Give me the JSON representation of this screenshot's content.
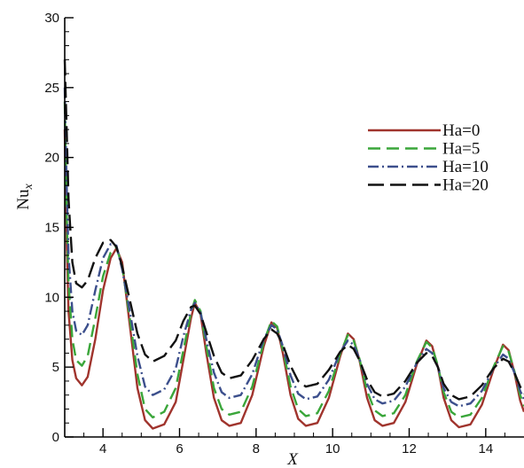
{
  "chart_data": {
    "type": "line",
    "title": "",
    "xlabel": "X",
    "ylabel": "Nu",
    "ylabel_subscript": "x",
    "xlim": [
      3,
      15
    ],
    "ylim": [
      0,
      30
    ],
    "xticks": [
      4,
      6,
      8,
      10,
      12,
      14
    ],
    "yticks": [
      0,
      5,
      10,
      15,
      20,
      25,
      30
    ],
    "grid": false,
    "legend": "right",
    "series": [
      {
        "name": "Ha=0",
        "color": "#a0342d",
        "dash": "solid",
        "x": [
          3.0,
          3.05,
          3.1,
          3.2,
          3.3,
          3.45,
          3.6,
          3.8,
          4.0,
          4.2,
          4.35,
          4.5,
          4.7,
          4.9,
          5.1,
          5.3,
          5.6,
          5.9,
          6.1,
          6.3,
          6.4,
          6.55,
          6.7,
          6.9,
          7.1,
          7.3,
          7.6,
          7.9,
          8.2,
          8.4,
          8.55,
          8.7,
          8.9,
          9.1,
          9.3,
          9.6,
          9.9,
          10.2,
          10.4,
          10.55,
          10.7,
          10.9,
          11.1,
          11.3,
          11.6,
          11.9,
          12.2,
          12.45,
          12.6,
          12.75,
          12.9,
          13.1,
          13.3,
          13.6,
          13.9,
          14.2,
          14.45,
          14.6,
          14.75,
          14.9,
          15.0
        ],
        "y": [
          22,
          14,
          9,
          5.5,
          4.2,
          3.7,
          4.3,
          7.0,
          10.5,
          12.8,
          13.5,
          12.5,
          8.0,
          3.5,
          1.2,
          0.6,
          0.9,
          2.5,
          5.5,
          8.5,
          9.6,
          8.8,
          6.0,
          2.8,
          1.2,
          0.8,
          1.0,
          3.0,
          6.5,
          8.2,
          7.8,
          6.0,
          3.0,
          1.3,
          0.8,
          1.0,
          2.8,
          5.8,
          7.4,
          7.0,
          5.5,
          2.8,
          1.2,
          0.8,
          1.0,
          2.5,
          5.2,
          6.9,
          6.5,
          5.0,
          2.8,
          1.2,
          0.7,
          0.9,
          2.3,
          4.8,
          6.6,
          6.2,
          4.6,
          2.6,
          1.8
        ]
      },
      {
        "name": "Ha=5",
        "color": "#3aa63a",
        "dash": "14,7",
        "x": [
          3.0,
          3.05,
          3.1,
          3.2,
          3.3,
          3.45,
          3.6,
          3.8,
          4.0,
          4.2,
          4.35,
          4.5,
          4.7,
          4.9,
          5.1,
          5.3,
          5.6,
          5.9,
          6.1,
          6.3,
          6.4,
          6.55,
          6.7,
          6.9,
          7.1,
          7.3,
          7.6,
          7.9,
          8.2,
          8.4,
          8.55,
          8.7,
          8.9,
          9.1,
          9.3,
          9.6,
          9.9,
          10.2,
          10.4,
          10.55,
          10.7,
          10.9,
          11.1,
          11.3,
          11.6,
          11.9,
          12.2,
          12.45,
          12.6,
          12.75,
          12.9,
          13.1,
          13.3,
          13.6,
          13.9,
          14.2,
          14.45,
          14.6,
          14.75,
          14.9,
          15.0
        ],
        "y": [
          24,
          16,
          11,
          7.0,
          5.5,
          5.1,
          5.8,
          8.5,
          11.5,
          13.2,
          13.6,
          12.2,
          8.5,
          4.5,
          2.0,
          1.4,
          1.8,
          3.5,
          6.2,
          8.9,
          9.8,
          9.0,
          6.5,
          3.5,
          2.0,
          1.6,
          1.8,
          3.6,
          6.8,
          8.3,
          7.9,
          6.3,
          3.6,
          2.0,
          1.5,
          1.7,
          3.3,
          6.0,
          7.3,
          6.9,
          5.6,
          3.3,
          1.9,
          1.5,
          1.7,
          3.0,
          5.4,
          6.8,
          6.4,
          5.1,
          3.2,
          1.8,
          1.4,
          1.6,
          2.8,
          5.0,
          6.5,
          6.1,
          4.7,
          3.0,
          2.2
        ]
      },
      {
        "name": "Ha=10",
        "color": "#3c4f8c",
        "dash": "12,4,2,4",
        "x": [
          3.0,
          3.05,
          3.1,
          3.2,
          3.3,
          3.45,
          3.6,
          3.8,
          4.0,
          4.2,
          4.35,
          4.5,
          4.7,
          4.9,
          5.1,
          5.3,
          5.6,
          5.9,
          6.1,
          6.3,
          6.4,
          6.55,
          6.7,
          6.9,
          7.1,
          7.3,
          7.6,
          7.9,
          8.2,
          8.4,
          8.55,
          8.7,
          8.9,
          9.1,
          9.3,
          9.6,
          9.9,
          10.2,
          10.4,
          10.55,
          10.7,
          10.9,
          11.1,
          11.3,
          11.6,
          11.9,
          12.2,
          12.45,
          12.6,
          12.75,
          12.9,
          13.1,
          13.3,
          13.6,
          13.9,
          14.2,
          14.45,
          14.6,
          14.75,
          14.9,
          15.0
        ],
        "y": [
          25,
          18,
          13,
          9.0,
          7.6,
          7.3,
          8.0,
          10.5,
          12.8,
          13.8,
          13.7,
          12.0,
          9.0,
          5.8,
          3.6,
          3.0,
          3.4,
          4.9,
          7.2,
          9.1,
          9.6,
          8.9,
          7.0,
          4.6,
          3.2,
          2.8,
          3.0,
          4.5,
          7.0,
          8.0,
          7.7,
          6.5,
          4.4,
          3.1,
          2.7,
          2.9,
          4.1,
          6.1,
          6.9,
          6.6,
          5.6,
          3.8,
          2.7,
          2.4,
          2.6,
          3.6,
          5.3,
          6.3,
          6.0,
          5.0,
          3.5,
          2.5,
          2.2,
          2.4,
          3.3,
          4.9,
          5.9,
          5.6,
          4.6,
          3.3,
          2.7
        ]
      },
      {
        "name": "Ha=20",
        "color": "#111111",
        "dash": "18,7",
        "x": [
          3.0,
          3.05,
          3.1,
          3.2,
          3.3,
          3.45,
          3.6,
          3.8,
          4.0,
          4.2,
          4.35,
          4.5,
          4.7,
          4.9,
          5.1,
          5.3,
          5.6,
          5.9,
          6.1,
          6.3,
          6.4,
          6.55,
          6.7,
          6.9,
          7.1,
          7.3,
          7.6,
          7.9,
          8.2,
          8.4,
          8.55,
          8.7,
          8.9,
          9.1,
          9.3,
          9.6,
          9.9,
          10.2,
          10.4,
          10.55,
          10.7,
          10.9,
          11.1,
          11.3,
          11.6,
          11.9,
          12.2,
          12.45,
          12.6,
          12.75,
          12.9,
          13.1,
          13.3,
          13.6,
          13.9,
          14.2,
          14.45,
          14.6,
          14.75,
          14.9,
          15.0
        ],
        "y": [
          27,
          22,
          17,
          12.5,
          11.0,
          10.7,
          11.2,
          12.8,
          13.9,
          14.1,
          13.6,
          12.2,
          9.8,
          7.4,
          5.9,
          5.4,
          5.8,
          6.9,
          8.3,
          9.3,
          9.4,
          8.8,
          7.5,
          5.8,
          4.6,
          4.2,
          4.4,
          5.5,
          7.0,
          7.7,
          7.4,
          6.6,
          5.1,
          4.0,
          3.6,
          3.8,
          4.8,
          6.1,
          6.6,
          6.3,
          5.5,
          4.1,
          3.2,
          2.9,
          3.1,
          4.0,
          5.3,
          6.0,
          5.8,
          5.0,
          3.8,
          3.0,
          2.7,
          2.9,
          3.7,
          4.9,
          5.6,
          5.4,
          4.6,
          3.6,
          3.1
        ]
      }
    ]
  }
}
